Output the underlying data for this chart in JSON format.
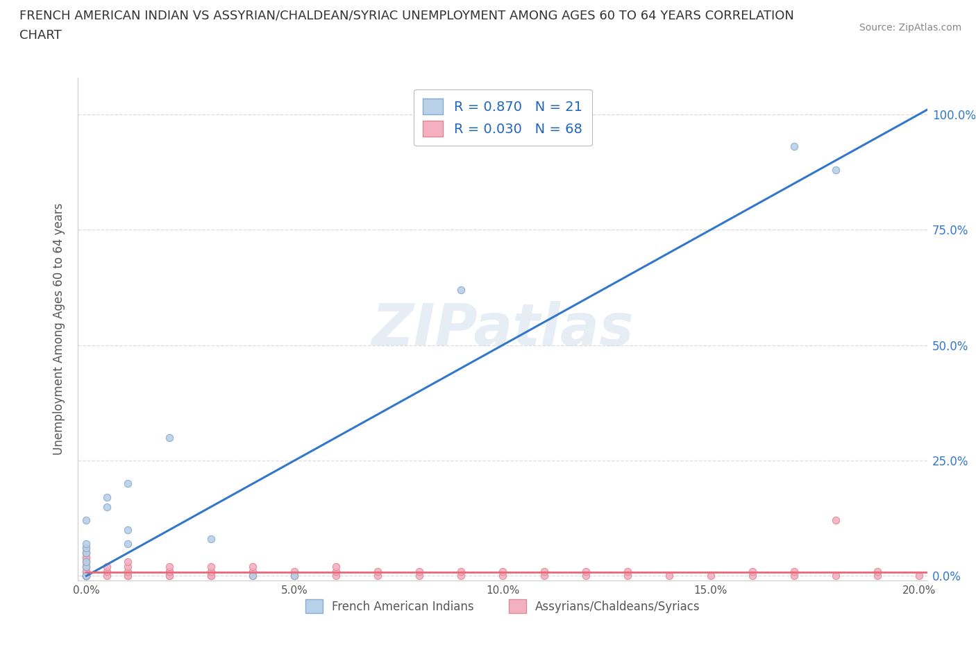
{
  "title_line1": "FRENCH AMERICAN INDIAN VS ASSYRIAN/CHALDEAN/SYRIAC UNEMPLOYMENT AMONG AGES 60 TO 64 YEARS CORRELATION",
  "title_line2": "CHART",
  "source": "Source: ZipAtlas.com",
  "ylabel": "Unemployment Among Ages 60 to 64 years",
  "watermark": "ZIPatlas",
  "legend_blue_r": "R = 0.870",
  "legend_blue_n": "N = 21",
  "legend_pink_r": "R = 0.030",
  "legend_pink_n": "N = 68",
  "legend_blue_label": "French American Indians",
  "legend_pink_label": "Assyrians/Chaldeans/Syriacs",
  "blue_color": "#b8d0e8",
  "pink_color": "#f5b0c0",
  "blue_edge": "#88aacc",
  "pink_edge": "#dd8899",
  "trend_blue": "#3377cc",
  "trend_pink": "#ee6677",
  "blue_dots_x": [
    0.0,
    0.0,
    0.0,
    0.0,
    0.0,
    0.0,
    0.0,
    0.0,
    0.005,
    0.005,
    0.01,
    0.01,
    0.01,
    0.02,
    0.03,
    0.04,
    0.05,
    0.09,
    0.17,
    0.18,
    0.0
  ],
  "blue_dots_y": [
    0.0,
    0.0,
    0.02,
    0.03,
    0.05,
    0.06,
    0.07,
    0.12,
    0.15,
    0.17,
    0.07,
    0.1,
    0.2,
    0.3,
    0.08,
    0.0,
    0.0,
    0.62,
    0.93,
    0.88,
    0.0
  ],
  "pink_dots_x": [
    0.0,
    0.0,
    0.0,
    0.0,
    0.0,
    0.0,
    0.0,
    0.0,
    0.0,
    0.0,
    0.0,
    0.0,
    0.0,
    0.0,
    0.0,
    0.0,
    0.0,
    0.005,
    0.005,
    0.005,
    0.01,
    0.01,
    0.01,
    0.01,
    0.01,
    0.02,
    0.02,
    0.02,
    0.02,
    0.02,
    0.03,
    0.03,
    0.03,
    0.03,
    0.04,
    0.04,
    0.04,
    0.05,
    0.05,
    0.05,
    0.06,
    0.06,
    0.06,
    0.07,
    0.07,
    0.08,
    0.08,
    0.09,
    0.09,
    0.1,
    0.1,
    0.11,
    0.11,
    0.12,
    0.12,
    0.13,
    0.13,
    0.14,
    0.15,
    0.16,
    0.16,
    0.17,
    0.17,
    0.18,
    0.18,
    0.19,
    0.19,
    0.2
  ],
  "pink_dots_y": [
    0.0,
    0.0,
    0.0,
    0.0,
    0.0,
    0.0,
    0.01,
    0.01,
    0.02,
    0.02,
    0.03,
    0.03,
    0.04,
    0.04,
    0.05,
    0.05,
    0.06,
    0.0,
    0.01,
    0.02,
    0.0,
    0.0,
    0.01,
    0.02,
    0.03,
    0.0,
    0.0,
    0.01,
    0.01,
    0.02,
    0.0,
    0.0,
    0.01,
    0.02,
    0.0,
    0.01,
    0.02,
    0.0,
    0.0,
    0.01,
    0.0,
    0.01,
    0.02,
    0.0,
    0.01,
    0.0,
    0.01,
    0.0,
    0.01,
    0.0,
    0.01,
    0.0,
    0.01,
    0.0,
    0.01,
    0.0,
    0.01,
    0.0,
    0.0,
    0.0,
    0.01,
    0.0,
    0.01,
    0.0,
    0.12,
    0.0,
    0.01,
    0.0
  ],
  "xlim": [
    -0.002,
    0.202
  ],
  "ylim": [
    -0.01,
    1.08
  ],
  "xticks": [
    0.0,
    0.05,
    0.1,
    0.15,
    0.2
  ],
  "xtick_labels": [
    "0.0%",
    "5.0%",
    "10.0%",
    "15.0%",
    "20.0%"
  ],
  "yticks": [
    0.0,
    0.25,
    0.5,
    0.75,
    1.0
  ],
  "ytick_labels": [
    "0.0%",
    "25.0%",
    "50.0%",
    "75.0%",
    "100.0%"
  ],
  "background": "#ffffff",
  "grid_color": "#dddddd",
  "marker_size": 55,
  "trend_blue_x0": 0.0,
  "trend_blue_y0": 0.0,
  "trend_blue_x1": 0.202,
  "trend_blue_y1": 1.01,
  "trend_pink_x0": 0.0,
  "trend_pink_y0": 0.008,
  "trend_pink_x1": 0.202,
  "trend_pink_y1": 0.008
}
